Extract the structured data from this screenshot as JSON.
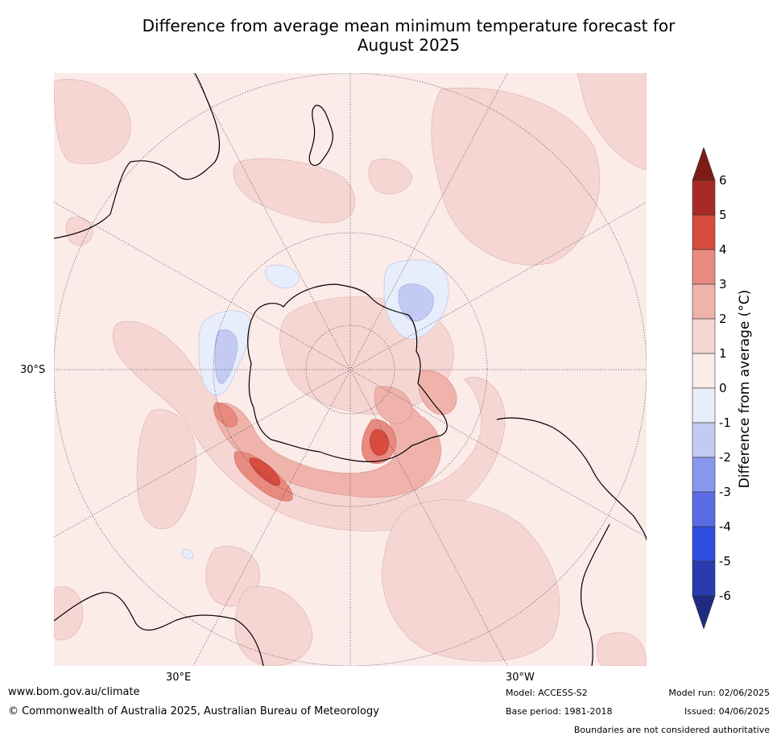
{
  "title_line1": "Difference from average mean minimum temperature forecast for",
  "title_line2": "August 2025",
  "map": {
    "projection": "south-polar-stereographic",
    "lat_label": "30°S",
    "lon_label_left": "30°E",
    "lon_label_right": "30°W"
  },
  "colorbar": {
    "label": "Difference from average (°C)",
    "ticks": [
      "6",
      "5",
      "4",
      "3",
      "2",
      "1",
      "0",
      "-1",
      "-2",
      "-3",
      "-4",
      "-5",
      "-6"
    ],
    "colors": [
      "#7b1c17",
      "#a82a25",
      "#d84b3f",
      "#e88a80",
      "#efb3ab",
      "#f6d6d3",
      "#fbebe9",
      "#e8edfb",
      "#c3cbf3",
      "#8797ed",
      "#5a6de6",
      "#2f4de0",
      "#2a3bb0",
      "#1f2a80"
    ]
  },
  "footer": {
    "url": "www.bom.gov.au/climate",
    "copyright": "© Commonwealth of Australia 2025, Australian Bureau of Meteorology",
    "model": "Model: ACCESS-S2",
    "base_period": "Base period: 1981-2018",
    "model_run": "Model run: 02/06/2025",
    "issued": "Issued: 04/06/2025",
    "disclaimer": "Boundaries are not considered authoritative"
  }
}
